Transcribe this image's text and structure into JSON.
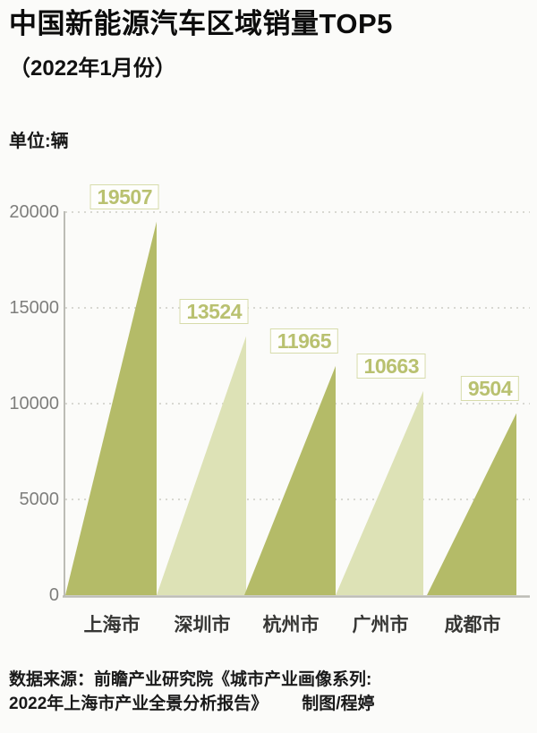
{
  "header": {
    "title": "中国新能源汽车区域销量TOP5",
    "subtitle": "（2022年1月份）"
  },
  "chart": {
    "unit_label": "单位:辆"
  },
  "chart_data": {
    "type": "bar",
    "variant": "right-triangle-peak-bars",
    "title": "中国新能源汽车区域销量TOP5（2022年1月份）",
    "unit": "辆",
    "categories": [
      "上海市",
      "深圳市",
      "杭州市",
      "广州市",
      "成都市"
    ],
    "values": [
      19507,
      13524,
      11965,
      10663,
      9504
    ],
    "value_labels": [
      "19507",
      "13524",
      "11965",
      "10663",
      "9504"
    ],
    "ylim": [
      0,
      20000
    ],
    "yticks": [
      0,
      5000,
      10000,
      15000,
      20000
    ],
    "grid": "horizontal-dashed",
    "legend": null,
    "colors": {
      "triangle_dark": "#b4bb68",
      "triangle_light": "#dde2b6",
      "value_text": "#b9c170",
      "value_box_border": "#d7dcab",
      "gridline": "#ccccc6",
      "axis": "#bcbcb6",
      "tick_text": "#7e7e7c",
      "category_text": "#363634"
    }
  },
  "footer": {
    "source_line1": "数据来源：前瞻产业研究院《城市产业画像系列:",
    "source_line2": "2022年上海市产业全景分析报告》",
    "credit": "制图/程婷"
  }
}
